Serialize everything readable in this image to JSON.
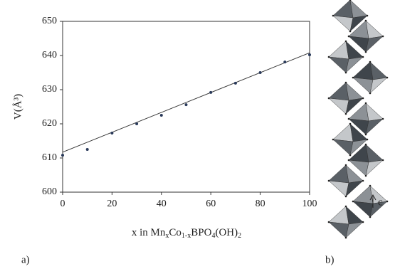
{
  "chart_data": {
    "type": "scatter",
    "ylabel": "V(Å³)",
    "xlabel_parts": [
      "x in Mn",
      "x",
      "Co",
      "1-x",
      "BPO",
      "4",
      "(OH)",
      "2"
    ],
    "x": [
      0,
      10,
      20,
      30,
      40,
      50,
      60,
      70,
      80,
      90,
      100
    ],
    "series": [
      {
        "color": "#2a3a5a",
        "values": [
          610.8,
          612.5,
          617.3,
          620.0,
          622.5,
          625.6,
          629.2,
          631.9,
          635.0,
          638.1,
          640.2
        ]
      }
    ],
    "trend_line": {
      "color": "#333333",
      "x": [
        0,
        100
      ],
      "values": [
        611.7,
        640.8
      ]
    },
    "xlim": [
      0,
      100
    ],
    "ylim": [
      600,
      650
    ],
    "xticks": [
      0,
      20,
      40,
      60,
      80,
      100
    ],
    "yticks": [
      600,
      610,
      620,
      630,
      640,
      650
    ]
  },
  "figure_labels": {
    "a": "a)",
    "b": "b)",
    "c": "c"
  }
}
